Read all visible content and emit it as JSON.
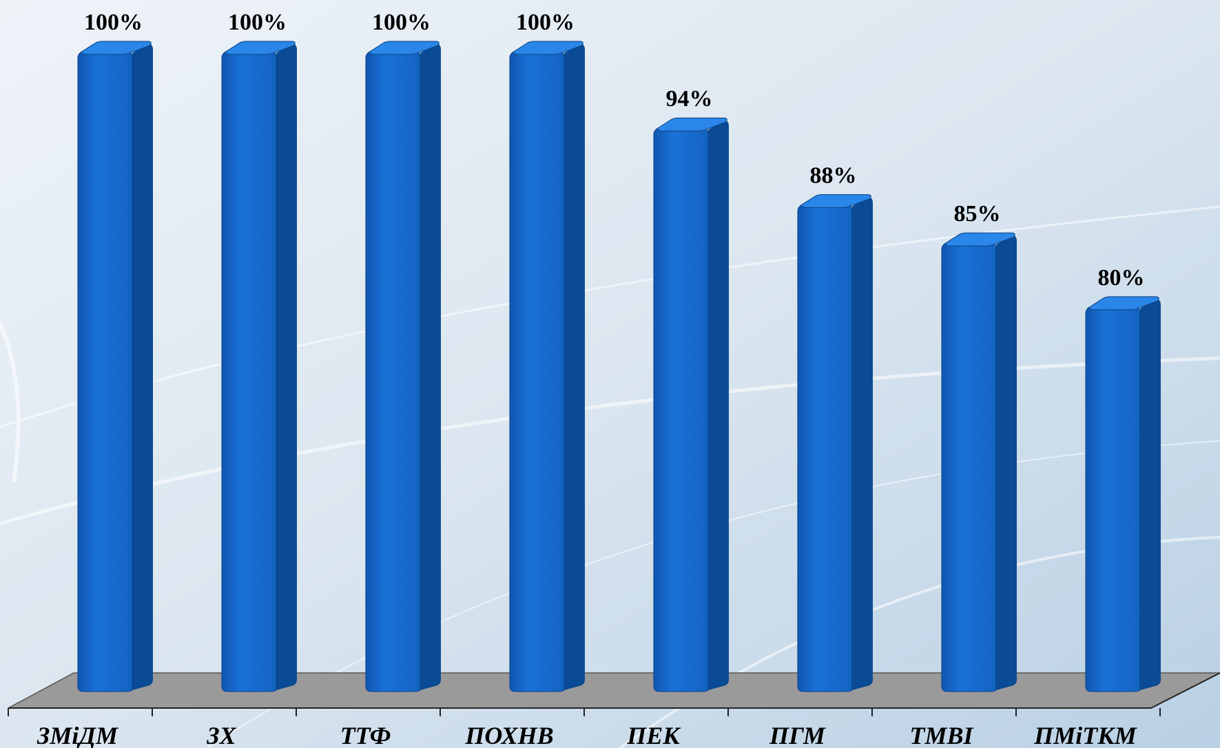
{
  "chart_data": {
    "type": "bar3d",
    "categories": [
      "ЗМіДМ",
      "ЗХ",
      "ТТФ",
      "ПОХНВ",
      "ПЕК",
      "ПГМ",
      "ТМВІ",
      "ПМіТКМ"
    ],
    "values": [
      100,
      100,
      100,
      100,
      94,
      88,
      85,
      80
    ],
    "value_labels": [
      "100%",
      "100%",
      "100%",
      "100%",
      "94%",
      "88%",
      "85%",
      "80%"
    ],
    "color": "#1769cf",
    "ylim": [
      50,
      100
    ]
  }
}
